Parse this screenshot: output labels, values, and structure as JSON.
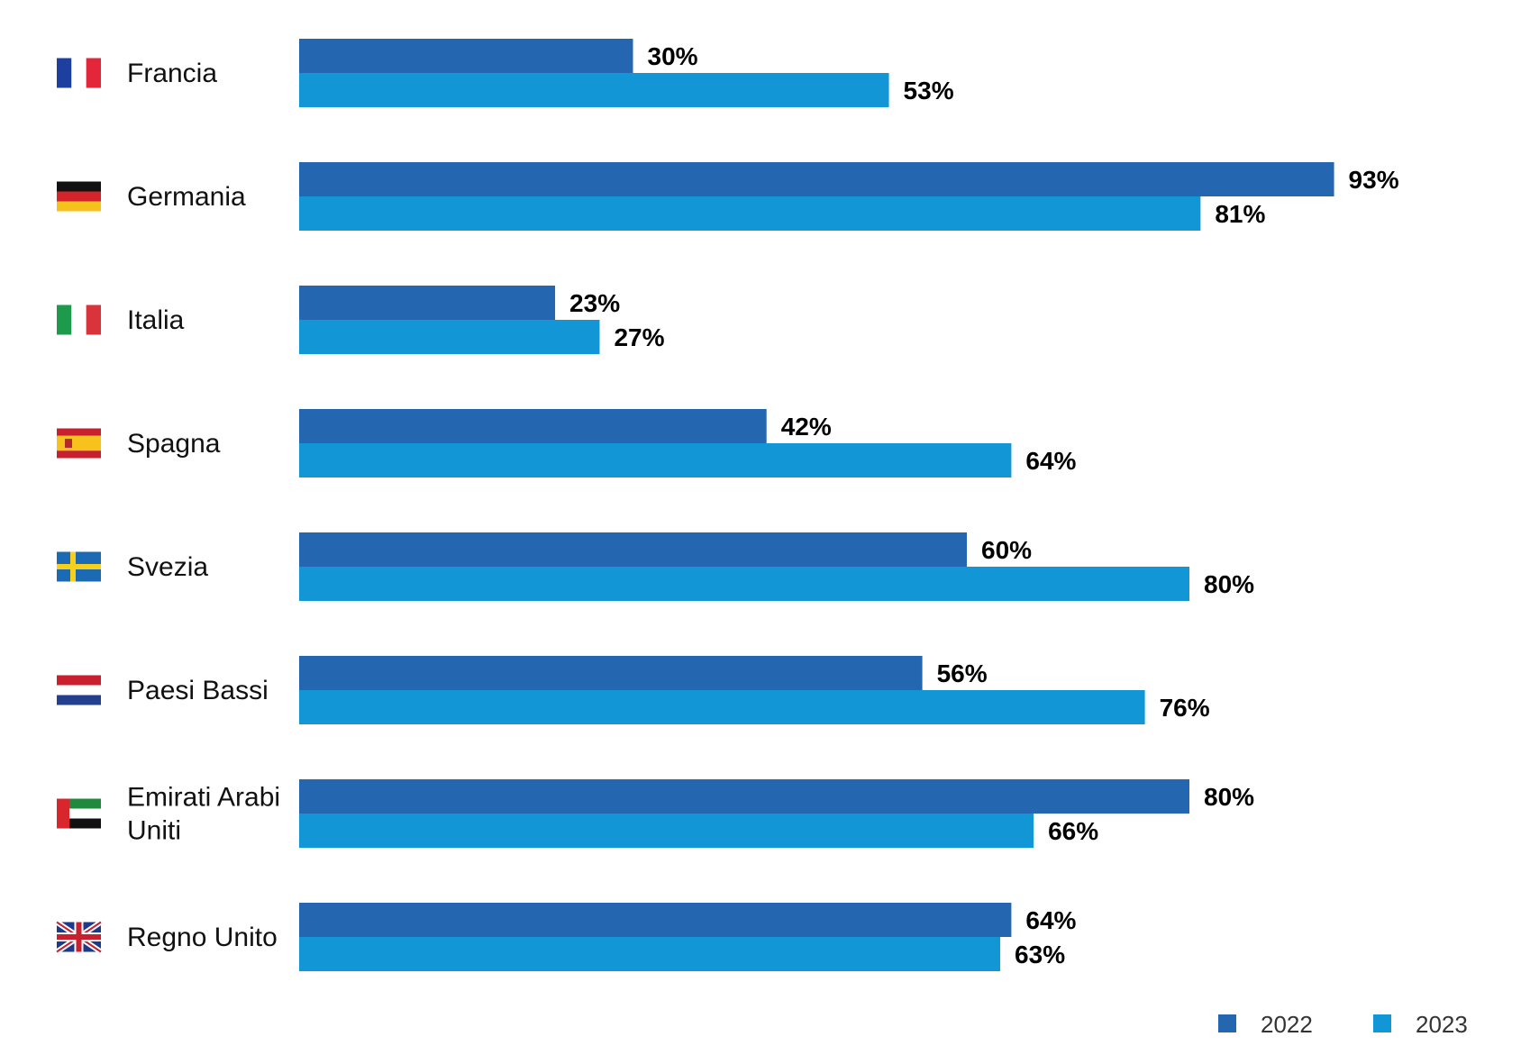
{
  "chart_data": {
    "type": "bar",
    "orientation": "horizontal",
    "categories": [
      "Francia",
      "Germania",
      "Italia",
      "Spagna",
      "Svezia",
      "Paesi Bassi",
      "Emirati Arabi Uniti",
      "Regno Unito"
    ],
    "category_label_lines": [
      [
        "Francia"
      ],
      [
        "Germania"
      ],
      [
        "Italia"
      ],
      [
        "Spagna"
      ],
      [
        "Svezia"
      ],
      [
        "Paesi Bassi"
      ],
      [
        "Emirati Arabi",
        "Uniti"
      ],
      [
        "Regno Unito"
      ]
    ],
    "category_flag_icons": [
      "france-flag-icon",
      "germany-flag-icon",
      "italy-flag-icon",
      "spain-flag-icon",
      "sweden-flag-icon",
      "netherlands-flag-icon",
      "uae-flag-icon",
      "uk-flag-icon"
    ],
    "series": [
      {
        "name": "2022",
        "color": "#2466b0",
        "values": [
          30,
          93,
          23,
          42,
          60,
          56,
          80,
          64
        ],
        "labels": [
          "30%",
          "93%",
          "23%",
          "42%",
          "60%",
          "56%",
          "80%",
          "64%"
        ]
      },
      {
        "name": "2023",
        "color": "#1396d6",
        "values": [
          53,
          81,
          27,
          64,
          80,
          76,
          66,
          63
        ],
        "labels": [
          "53%",
          "81%",
          "27%",
          "64%",
          "80%",
          "76%",
          "66%",
          "63%"
        ]
      }
    ],
    "value_unit": "%",
    "xlim": [
      0,
      100
    ],
    "title": "",
    "xlabel": "",
    "ylabel": "",
    "grid": false,
    "legend_position": "bottom-right"
  }
}
